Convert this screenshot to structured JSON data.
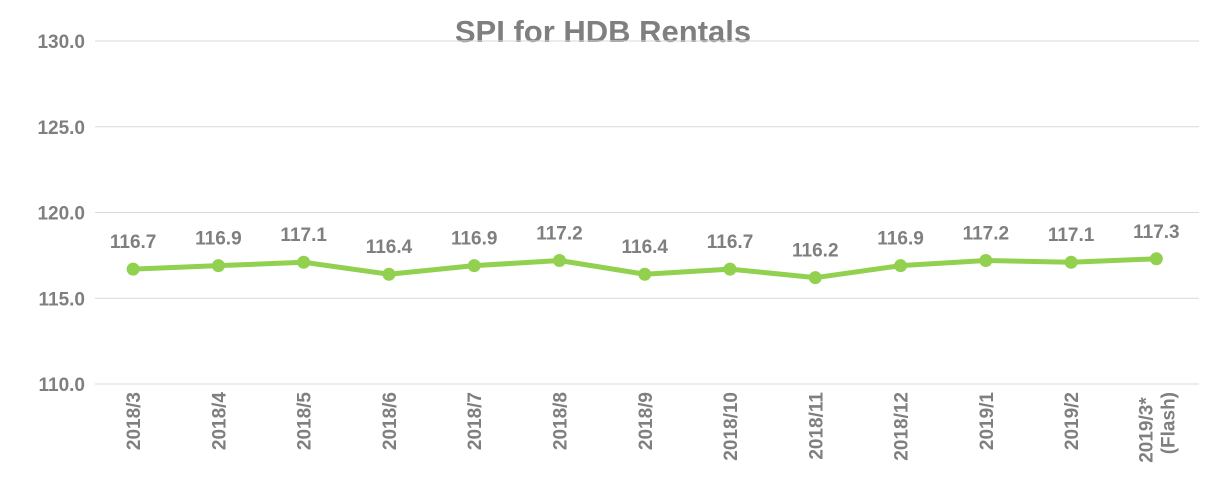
{
  "chart_data": {
    "type": "line",
    "title": "SPI for HDB Rentals",
    "categories": [
      "2018/3",
      "2018/4",
      "2018/5",
      "2018/6",
      "2018/7",
      "2018/8",
      "2018/9",
      "2018/10",
      "2018/11",
      "2018/12",
      "2019/1",
      "2019/2",
      "2019/3* (Flash)"
    ],
    "series": [
      {
        "name": "SPI",
        "color": "#92d050",
        "values": [
          116.7,
          116.9,
          117.1,
          116.4,
          116.9,
          117.2,
          116.4,
          116.7,
          116.2,
          116.9,
          117.2,
          117.1,
          117.3
        ],
        "value_labels": [
          "116.7",
          "116.9",
          "117.1",
          "116.4",
          "116.9",
          "117.2",
          "116.4",
          "116.7",
          "116.2",
          "116.9",
          "117.2",
          "117.1",
          "117.3"
        ]
      }
    ],
    "ylim": [
      110,
      130
    ],
    "yticks": [
      {
        "value": 110,
        "label": "110.0"
      },
      {
        "value": 115,
        "label": "115.0"
      },
      {
        "value": 120,
        "label": "120.0"
      },
      {
        "value": 125,
        "label": "125.0"
      },
      {
        "value": 130,
        "label": "130.0"
      }
    ],
    "grid": true
  }
}
